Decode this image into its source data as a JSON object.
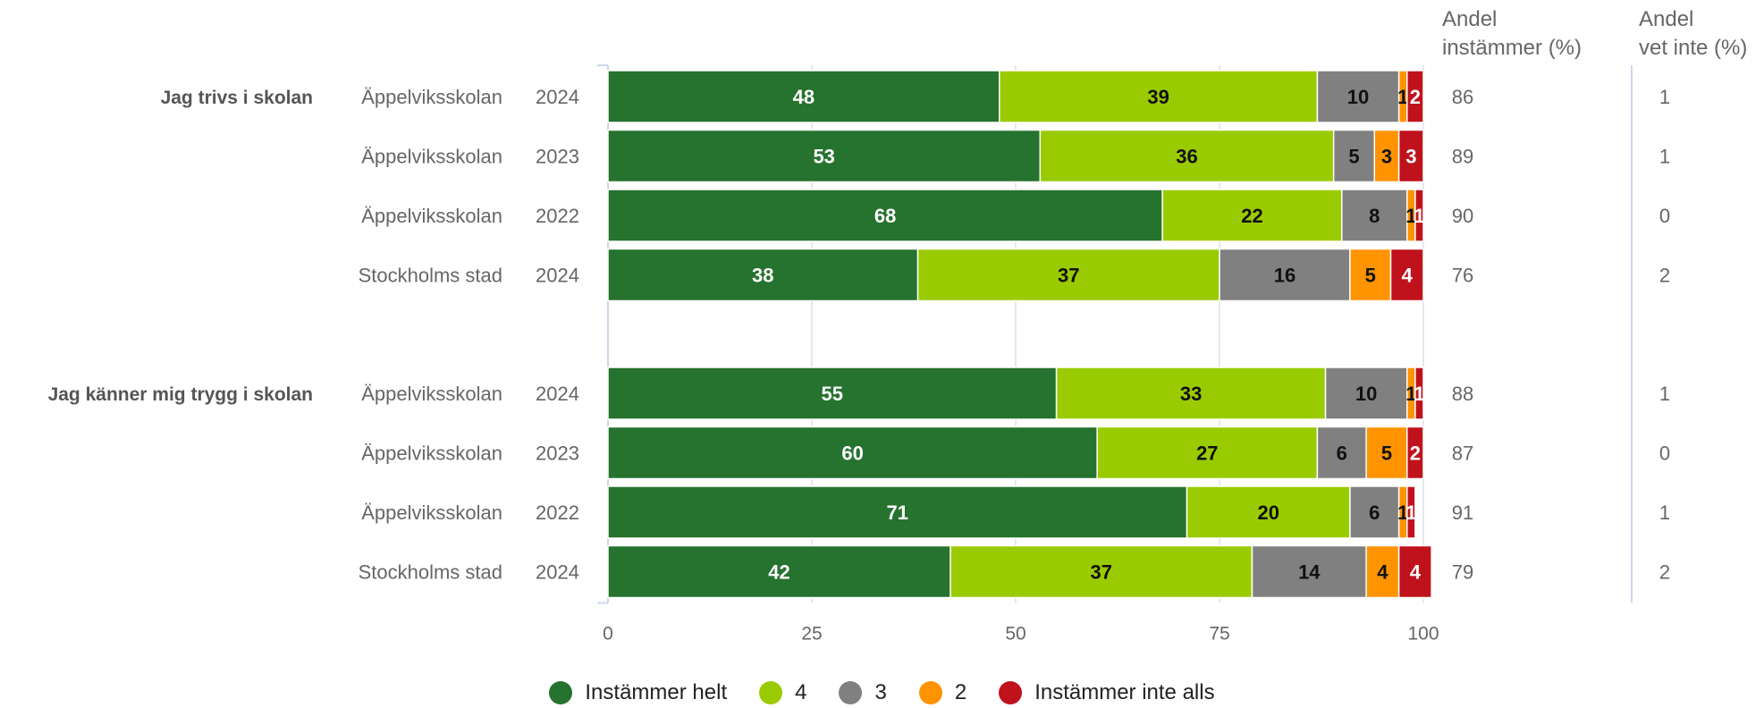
{
  "chart_data": {
    "type": "bar",
    "orientation": "horizontal",
    "stacked": true,
    "xlim": [
      0,
      100
    ],
    "x_ticks": [
      "0",
      "25",
      "50",
      "75",
      "100"
    ],
    "grid": true,
    "legend_position": "bottom",
    "series": [
      {
        "name": "Instämmer helt",
        "color": "#26722f"
      },
      {
        "name": "4",
        "color": "#9acb00"
      },
      {
        "name": "3",
        "color": "#808080"
      },
      {
        "name": "2",
        "color": "#ff9300"
      },
      {
        "name": "Instämmer inte alls",
        "color": "#c0121c"
      }
    ],
    "side_columns": [
      {
        "header_line1": "Andel",
        "header_line2": "instämmer (%)"
      },
      {
        "header_line1": "Andel",
        "header_line2": "vet inte (%)"
      }
    ],
    "groups": [
      {
        "label": "Jag trivs i skolan",
        "rows": [
          {
            "unit": "Äppelviksskolan",
            "year": "2024",
            "values": [
              48,
              39,
              10,
              1,
              2
            ],
            "instammer": "86",
            "vet_inte": "1"
          },
          {
            "unit": "Äppelviksskolan",
            "year": "2023",
            "values": [
              53,
              36,
              5,
              3,
              3
            ],
            "instammer": "89",
            "vet_inte": "1"
          },
          {
            "unit": "Äppelviksskolan",
            "year": "2022",
            "values": [
              68,
              22,
              8,
              1,
              1
            ],
            "instammer": "90",
            "vet_inte": "0"
          },
          {
            "unit": "Stockholms stad",
            "year": "2024",
            "values": [
              38,
              37,
              16,
              5,
              4
            ],
            "instammer": "76",
            "vet_inte": "2"
          }
        ]
      },
      {
        "label": "Jag känner mig trygg i skolan",
        "rows": [
          {
            "unit": "Äppelviksskolan",
            "year": "2024",
            "values": [
              55,
              33,
              10,
              1,
              1
            ],
            "instammer": "88",
            "vet_inte": "1"
          },
          {
            "unit": "Äppelviksskolan",
            "year": "2023",
            "values": [
              60,
              27,
              6,
              5,
              2
            ],
            "instammer": "87",
            "vet_inte": "0"
          },
          {
            "unit": "Äppelviksskolan",
            "year": "2022",
            "values": [
              71,
              20,
              6,
              1,
              1
            ],
            "instammer": "91",
            "vet_inte": "1"
          },
          {
            "unit": "Stockholms stad",
            "year": "2024",
            "values": [
              42,
              37,
              14,
              4,
              4
            ],
            "instammer": "79",
            "vet_inte": "2"
          }
        ]
      }
    ]
  }
}
